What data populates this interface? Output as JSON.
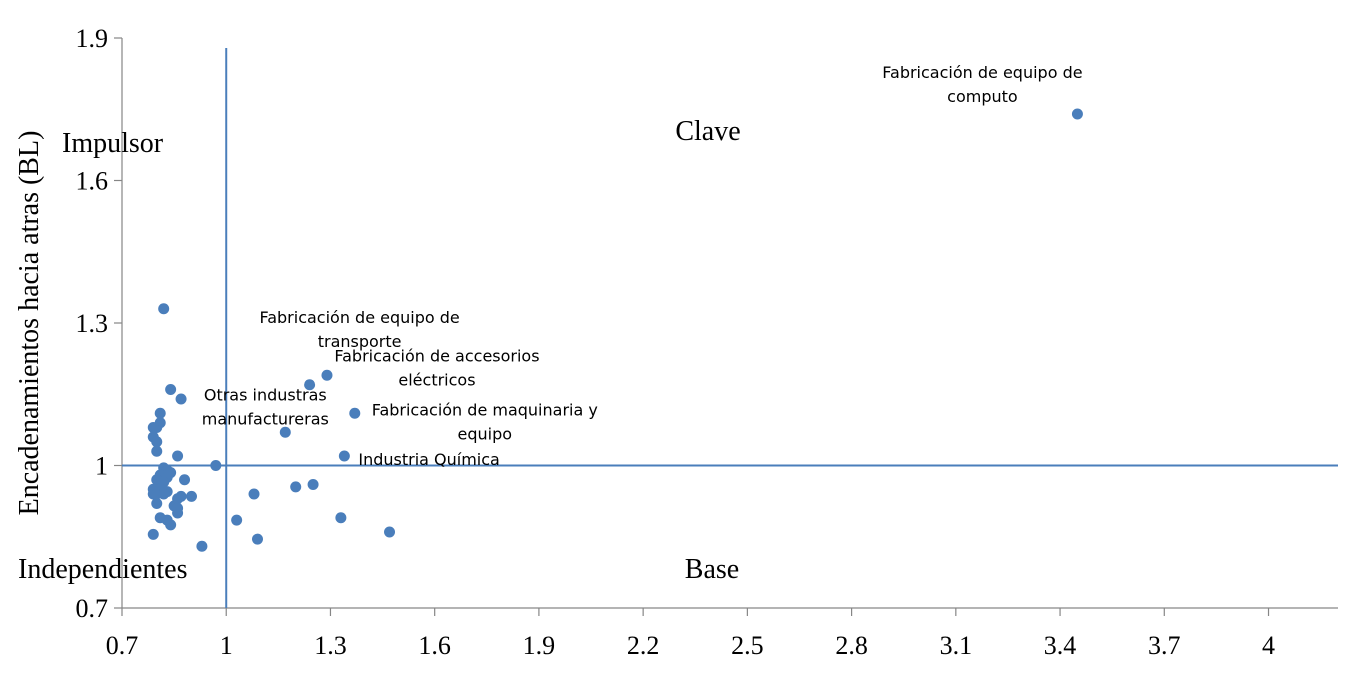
{
  "chart_data": {
    "type": "scatter",
    "ylabel": "Encadenamientos hacia atras (BL)",
    "xlabel": "",
    "xlim": [
      0.7,
      4.2
    ],
    "ylim": [
      0.7,
      1.9
    ],
    "x_ticks": [
      "0.7",
      "1",
      "1.3",
      "1.6",
      "1.9",
      "2.2",
      "2.5",
      "2.8",
      "3.1",
      "3.4",
      "3.7",
      "4"
    ],
    "y_ticks": [
      "0.7",
      "1",
      "1.3",
      "1.6",
      "1.9"
    ],
    "reference_lines": {
      "x": 1.0,
      "y": 1.0
    },
    "quadrants": {
      "top_left": "Impulsor",
      "top_right": "Clave",
      "bottom_left": "Independientes",
      "bottom_right": "Base"
    },
    "annotations": [
      {
        "lines": [
          "Fabricación de equipo de",
          "computo"
        ],
        "x": 3.45,
        "y": 1.74
      },
      {
        "lines": [
          "Fabricación de equipo de",
          "transporte"
        ],
        "x": 1.24,
        "y": 1.17
      },
      {
        "lines": [
          "Fabricación de accesorios",
          "eléctricos"
        ],
        "x": 1.29,
        "y": 1.19
      },
      {
        "lines": [
          "Otras industras",
          "manufactureras"
        ],
        "x": 1.17,
        "y": 1.07
      },
      {
        "lines": [
          "Fabricación de maquinaria y",
          "equipo"
        ],
        "x": 1.37,
        "y": 1.11
      },
      {
        "lines": [
          "Industria Química"
        ],
        "x": 1.34,
        "y": 1.02
      }
    ],
    "points": [
      [
        3.45,
        1.74
      ],
      [
        0.82,
        1.33
      ],
      [
        1.29,
        1.19
      ],
      [
        1.24,
        1.17
      ],
      [
        0.84,
        1.16
      ],
      [
        0.87,
        1.14
      ],
      [
        1.37,
        1.11
      ],
      [
        0.81,
        1.11
      ],
      [
        1.17,
        1.07
      ],
      [
        0.8,
        1.08
      ],
      [
        0.81,
        1.09
      ],
      [
        0.79,
        1.08
      ],
      [
        0.79,
        1.06
      ],
      [
        0.8,
        1.05
      ],
      [
        0.8,
        1.03
      ],
      [
        1.34,
        1.02
      ],
      [
        0.86,
        1.02
      ],
      [
        0.97,
        1.0
      ],
      [
        0.82,
        0.995
      ],
      [
        0.83,
        0.99
      ],
      [
        0.84,
        0.985
      ],
      [
        0.81,
        0.98
      ],
      [
        0.83,
        0.975
      ],
      [
        0.8,
        0.97
      ],
      [
        0.88,
        0.97
      ],
      [
        0.82,
        0.965
      ],
      [
        1.25,
        0.96
      ],
      [
        1.2,
        0.955
      ],
      [
        0.79,
        0.95
      ],
      [
        0.81,
        0.95
      ],
      [
        0.83,
        0.945
      ],
      [
        1.08,
        0.94
      ],
      [
        0.79,
        0.94
      ],
      [
        0.8,
        0.94
      ],
      [
        0.82,
        0.94
      ],
      [
        0.87,
        0.935
      ],
      [
        0.9,
        0.935
      ],
      [
        0.86,
        0.93
      ],
      [
        0.8,
        0.92
      ],
      [
        0.85,
        0.915
      ],
      [
        0.86,
        0.91
      ],
      [
        0.86,
        0.9
      ],
      [
        0.81,
        0.89
      ],
      [
        1.33,
        0.89
      ],
      [
        0.83,
        0.885
      ],
      [
        1.03,
        0.885
      ],
      [
        0.84,
        0.875
      ],
      [
        0.79,
        0.855
      ],
      [
        1.47,
        0.86
      ],
      [
        1.09,
        0.845
      ],
      [
        0.93,
        0.83
      ]
    ]
  }
}
